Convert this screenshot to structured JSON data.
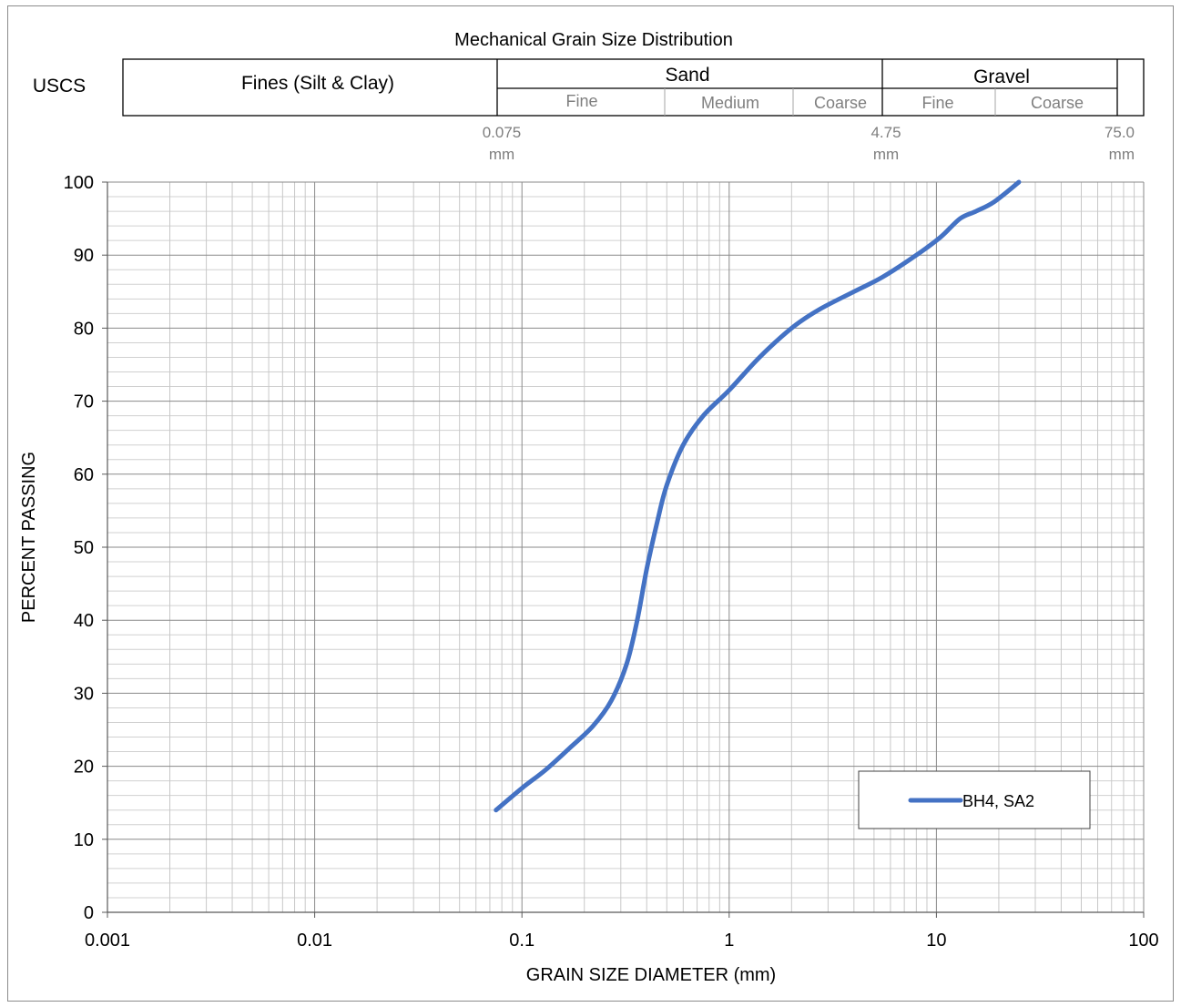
{
  "chart_data": {
    "type": "line",
    "title": "Mechanical Grain Size Distribution",
    "xlabel": "GRAIN SIZE DIAMETER (mm)",
    "ylabel": "PERCENT PASSING",
    "x_scale": "log",
    "xlim": [
      0.001,
      100
    ],
    "ylim": [
      0,
      100
    ],
    "x_ticks": [
      "0.001",
      "0.01",
      "0.1",
      "1",
      "10",
      "100"
    ],
    "y_ticks": [
      "0",
      "10",
      "20",
      "30",
      "40",
      "50",
      "60",
      "70",
      "80",
      "90",
      "100"
    ],
    "grid": true,
    "legend_position": "bottom-right",
    "series": [
      {
        "name": "BH4, SA2",
        "color": "#4472C4",
        "x": [
          0.075,
          0.1,
          0.13,
          0.17,
          0.22,
          0.27,
          0.32,
          0.36,
          0.4,
          0.45,
          0.5,
          0.6,
          0.75,
          1.0,
          1.4,
          2.0,
          2.7,
          4.0,
          5.5,
          8.0,
          10.5,
          13.0,
          15.5,
          19.0,
          25.0
        ],
        "y": [
          14,
          17,
          19.5,
          22.5,
          25.5,
          29,
          34,
          40,
          47,
          53.5,
          58.5,
          64,
          68,
          71.5,
          76,
          80,
          82.5,
          85,
          87,
          90,
          92.5,
          95,
          96,
          97.3,
          100
        ]
      }
    ]
  },
  "uscs": {
    "row_label": "USCS",
    "fines": "Fines (Silt & Clay)",
    "sand": "Sand",
    "gravel": "Gravel",
    "sand_fine": "Fine",
    "sand_medium": "Medium",
    "sand_coarse": "Coarse",
    "gravel_fine": "Fine",
    "gravel_coarse": "Coarse",
    "sizes": [
      {
        "value": "0.075",
        "unit": "mm"
      },
      {
        "value": "4.75",
        "unit": "mm"
      },
      {
        "value": "75.0",
        "unit": "mm"
      }
    ]
  }
}
